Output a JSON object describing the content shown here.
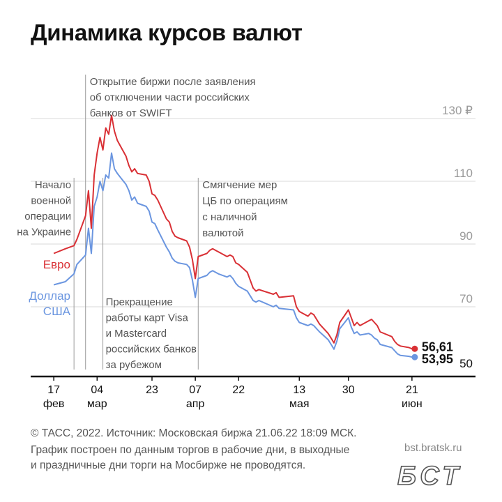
{
  "title": "Динамика курсов валют",
  "footer": {
    "line1": "© ТАСС, 2022. Источник: Московская биржа 21.06.22 18:09 МСК.",
    "line2": "График построен по данным торгов в рабочие дни, в выходные",
    "line3": "и праздничные дни торги на Мосбирже не проводятся."
  },
  "site": "bst.bratsk.ru",
  "logo_text": "БСТ",
  "colors": {
    "euro": "#d93035",
    "usd": "#6b96e0",
    "grid": "#d8d8d8",
    "annotation": "#555555",
    "vline": "#9a9a9a"
  },
  "chart_data": {
    "type": "line",
    "title": "Динамика курсов валют",
    "ylim": [
      50,
      130
    ],
    "y_ticks": [
      {
        "value": 130,
        "label": "130 ₽"
      },
      {
        "value": 110,
        "label": "110"
      },
      {
        "value": 90,
        "label": "90"
      },
      {
        "value": 70,
        "label": "70"
      },
      {
        "value": 50,
        "label": "50"
      }
    ],
    "x_ticks": [
      {
        "day": "2022-02-17",
        "day_label": "17",
        "month_label": "фев"
      },
      {
        "day": "2022-03-04",
        "day_label": "04",
        "month_label": "мар"
      },
      {
        "day": "2022-03-23",
        "day_label": "23",
        "month_label": ""
      },
      {
        "day": "2022-04-07",
        "day_label": "07",
        "month_label": "апр"
      },
      {
        "day": "2022-04-22",
        "day_label": "22",
        "month_label": ""
      },
      {
        "day": "2022-05-13",
        "day_label": "13",
        "month_label": "мая"
      },
      {
        "day": "2022-05-30",
        "day_label": "30",
        "month_label": ""
      },
      {
        "day": "2022-06-21",
        "day_label": "21",
        "month_label": "июн"
      }
    ],
    "x_range": [
      "2022-02-09",
      "2022-07-13"
    ],
    "series": [
      {
        "name": "Евро",
        "label_lines": [
          "Евро"
        ],
        "end_value": 56.61,
        "end_label": "56,61",
        "points": [
          [
            "2022-02-17",
            87.0
          ],
          [
            "2022-02-21",
            88.5
          ],
          [
            "2022-02-24",
            89.5
          ],
          [
            "2022-02-25",
            91.5
          ],
          [
            "2022-02-28",
            99.0
          ],
          [
            "2022-03-01",
            107.0
          ],
          [
            "2022-03-02",
            95.0
          ],
          [
            "2022-03-03",
            112.0
          ],
          [
            "2022-03-04",
            119.0
          ],
          [
            "2022-03-05",
            124.0
          ],
          [
            "2022-03-06",
            120.0
          ],
          [
            "2022-03-07",
            127.0
          ],
          [
            "2022-03-08",
            125.0
          ],
          [
            "2022-03-09",
            131.0
          ],
          [
            "2022-03-10",
            126.0
          ],
          [
            "2022-03-11",
            123.0
          ],
          [
            "2022-03-14",
            118.0
          ],
          [
            "2022-03-15",
            115.0
          ],
          [
            "2022-03-16",
            113.0
          ],
          [
            "2022-03-17",
            114.0
          ],
          [
            "2022-03-18",
            112.5
          ],
          [
            "2022-03-21",
            112.0
          ],
          [
            "2022-03-22",
            110.0
          ],
          [
            "2022-03-23",
            106.0
          ],
          [
            "2022-03-24",
            105.5
          ],
          [
            "2022-03-25",
            104.0
          ],
          [
            "2022-03-28",
            98.0
          ],
          [
            "2022-03-29",
            97.0
          ],
          [
            "2022-03-30",
            94.0
          ],
          [
            "2022-03-31",
            92.5
          ],
          [
            "2022-04-01",
            92.0
          ],
          [
            "2022-04-04",
            91.0
          ],
          [
            "2022-04-05",
            89.0
          ],
          [
            "2022-04-06",
            85.0
          ],
          [
            "2022-04-07",
            79.0
          ],
          [
            "2022-04-08",
            86.0
          ],
          [
            "2022-04-11",
            87.0
          ],
          [
            "2022-04-12",
            88.0
          ],
          [
            "2022-04-13",
            88.5
          ],
          [
            "2022-04-14",
            88.0
          ],
          [
            "2022-04-15",
            87.5
          ],
          [
            "2022-04-18",
            86.0
          ],
          [
            "2022-04-19",
            86.5
          ],
          [
            "2022-04-20",
            86.0
          ],
          [
            "2022-04-21",
            84.0
          ],
          [
            "2022-04-22",
            83.5
          ],
          [
            "2022-04-25",
            81.0
          ],
          [
            "2022-04-26",
            78.5
          ],
          [
            "2022-04-27",
            76.0
          ],
          [
            "2022-04-28",
            75.0
          ],
          [
            "2022-04-29",
            75.5
          ],
          [
            "2022-05-04",
            74.0
          ],
          [
            "2022-05-05",
            74.5
          ],
          [
            "2022-05-06",
            73.0
          ],
          [
            "2022-05-11",
            73.5
          ],
          [
            "2022-05-12",
            70.0
          ],
          [
            "2022-05-13",
            68.5
          ],
          [
            "2022-05-16",
            67.0
          ],
          [
            "2022-05-17",
            68.0
          ],
          [
            "2022-05-18",
            67.5
          ],
          [
            "2022-05-19",
            66.0
          ],
          [
            "2022-05-20",
            64.5
          ],
          [
            "2022-05-23",
            61.5
          ],
          [
            "2022-05-24",
            60.0
          ],
          [
            "2022-05-25",
            58.5
          ],
          [
            "2022-05-26",
            61.0
          ],
          [
            "2022-05-27",
            65.0
          ],
          [
            "2022-05-30",
            69.0
          ],
          [
            "2022-05-31",
            66.5
          ],
          [
            "2022-06-01",
            64.0
          ],
          [
            "2022-06-02",
            65.0
          ],
          [
            "2022-06-03",
            64.0
          ],
          [
            "2022-06-06",
            65.5
          ],
          [
            "2022-06-07",
            66.0
          ],
          [
            "2022-06-08",
            65.0
          ],
          [
            "2022-06-09",
            64.0
          ],
          [
            "2022-06-10",
            62.0
          ],
          [
            "2022-06-14",
            60.5
          ],
          [
            "2022-06-15",
            59.0
          ],
          [
            "2022-06-16",
            58.0
          ],
          [
            "2022-06-17",
            57.5
          ],
          [
            "2022-06-20",
            57.0
          ],
          [
            "2022-06-21",
            56.61
          ]
        ]
      },
      {
        "name": "Доллар США",
        "label_lines": [
          "Доллар",
          "США"
        ],
        "end_value": 53.95,
        "end_label": "53,95",
        "points": [
          [
            "2022-02-17",
            77.0
          ],
          [
            "2022-02-21",
            78.0
          ],
          [
            "2022-02-24",
            80.5
          ],
          [
            "2022-02-25",
            83.5
          ],
          [
            "2022-02-28",
            86.5
          ],
          [
            "2022-03-01",
            95.0
          ],
          [
            "2022-03-02",
            87.0
          ],
          [
            "2022-03-03",
            102.0
          ],
          [
            "2022-03-04",
            105.0
          ],
          [
            "2022-03-05",
            110.0
          ],
          [
            "2022-03-06",
            107.0
          ],
          [
            "2022-03-07",
            112.0
          ],
          [
            "2022-03-08",
            111.0
          ],
          [
            "2022-03-09",
            119.0
          ],
          [
            "2022-03-10",
            114.0
          ],
          [
            "2022-03-11",
            112.5
          ],
          [
            "2022-03-14",
            109.0
          ],
          [
            "2022-03-15",
            107.0
          ],
          [
            "2022-03-16",
            104.0
          ],
          [
            "2022-03-17",
            105.0
          ],
          [
            "2022-03-18",
            103.0
          ],
          [
            "2022-03-21",
            102.0
          ],
          [
            "2022-03-22",
            100.5
          ],
          [
            "2022-03-23",
            97.0
          ],
          [
            "2022-03-24",
            96.5
          ],
          [
            "2022-03-25",
            94.5
          ],
          [
            "2022-03-28",
            89.0
          ],
          [
            "2022-03-29",
            87.5
          ],
          [
            "2022-03-30",
            85.5
          ],
          [
            "2022-03-31",
            84.5
          ],
          [
            "2022-04-01",
            84.0
          ],
          [
            "2022-04-04",
            83.5
          ],
          [
            "2022-04-05",
            82.5
          ],
          [
            "2022-04-06",
            78.5
          ],
          [
            "2022-04-07",
            73.0
          ],
          [
            "2022-04-08",
            79.0
          ],
          [
            "2022-04-11",
            80.0
          ],
          [
            "2022-04-12",
            81.0
          ],
          [
            "2022-04-13",
            81.5
          ],
          [
            "2022-04-14",
            81.0
          ],
          [
            "2022-04-15",
            80.5
          ],
          [
            "2022-04-18",
            79.5
          ],
          [
            "2022-04-19",
            80.0
          ],
          [
            "2022-04-20",
            79.0
          ],
          [
            "2022-04-21",
            77.5
          ],
          [
            "2022-04-22",
            76.5
          ],
          [
            "2022-04-25",
            75.0
          ],
          [
            "2022-04-26",
            73.5
          ],
          [
            "2022-04-27",
            72.0
          ],
          [
            "2022-04-28",
            71.5
          ],
          [
            "2022-04-29",
            72.0
          ],
          [
            "2022-05-04",
            70.0
          ],
          [
            "2022-05-05",
            70.5
          ],
          [
            "2022-05-06",
            69.5
          ],
          [
            "2022-05-11",
            69.0
          ],
          [
            "2022-05-12",
            66.5
          ],
          [
            "2022-05-13",
            65.0
          ],
          [
            "2022-05-16",
            64.0
          ],
          [
            "2022-05-17",
            64.5
          ],
          [
            "2022-05-18",
            64.0
          ],
          [
            "2022-05-19",
            63.0
          ],
          [
            "2022-05-20",
            62.0
          ],
          [
            "2022-05-23",
            59.5
          ],
          [
            "2022-05-24",
            58.0
          ],
          [
            "2022-05-25",
            56.5
          ],
          [
            "2022-05-26",
            59.0
          ],
          [
            "2022-05-27",
            63.0
          ],
          [
            "2022-05-30",
            66.5
          ],
          [
            "2022-05-31",
            63.5
          ],
          [
            "2022-06-01",
            61.5
          ],
          [
            "2022-06-02",
            62.0
          ],
          [
            "2022-06-03",
            61.0
          ],
          [
            "2022-06-06",
            61.5
          ],
          [
            "2022-06-07",
            61.0
          ],
          [
            "2022-06-08",
            60.0
          ],
          [
            "2022-06-09",
            59.5
          ],
          [
            "2022-06-10",
            58.0
          ],
          [
            "2022-06-14",
            57.0
          ],
          [
            "2022-06-15",
            56.0
          ],
          [
            "2022-06-16",
            55.0
          ],
          [
            "2022-06-17",
            54.5
          ],
          [
            "2022-06-20",
            54.2
          ],
          [
            "2022-06-21",
            53.95
          ]
        ]
      }
    ],
    "annotations": [
      {
        "id": "start",
        "date": "2022-02-24",
        "align": "right",
        "lines": [
          "Начало",
          "военной",
          "операции",
          "на Украине"
        ]
      },
      {
        "id": "swift",
        "date": "2022-02-28",
        "align": "left",
        "lines": [
          "Открытие биржи после заявления",
          "об отключении части российских",
          "банков от SWIFT"
        ]
      },
      {
        "id": "visa",
        "date": "2022-03-06",
        "align": "left",
        "lines": [
          "Прекращение",
          "работы карт Visa",
          "и Mastercard",
          "российских банков",
          "за рубежом"
        ]
      },
      {
        "id": "cb",
        "date": "2022-04-08",
        "align": "left",
        "lines": [
          "Смягчение мер",
          "ЦБ по операциям",
          "с наличной",
          "валютой"
        ]
      }
    ]
  }
}
